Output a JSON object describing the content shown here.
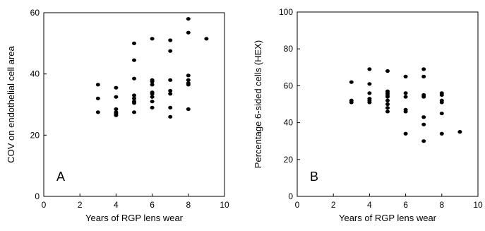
{
  "chart_data": [
    {
      "type": "scatter",
      "panel_label": "A",
      "xlabel": "Years of RGP lens wear",
      "ylabel": "COV on endothelial cell area",
      "xlim": [
        0,
        10
      ],
      "ylim": [
        0,
        60
      ],
      "xticks": [
        0,
        2,
        4,
        6,
        8,
        10
      ],
      "yticks": [
        0,
        20,
        40,
        60
      ],
      "grid": false,
      "points": [
        [
          3,
          36.5
        ],
        [
          3,
          32
        ],
        [
          3,
          27.5
        ],
        [
          4,
          35.5
        ],
        [
          4,
          32.5
        ],
        [
          4,
          28.5
        ],
        [
          4,
          27.5
        ],
        [
          4,
          27
        ],
        [
          4,
          26.5
        ],
        [
          5,
          50
        ],
        [
          5,
          44.5
        ],
        [
          5,
          38.5
        ],
        [
          5,
          33
        ],
        [
          5,
          32
        ],
        [
          5,
          31
        ],
        [
          5,
          30.5
        ],
        [
          5,
          27.5
        ],
        [
          6,
          51.5
        ],
        [
          6,
          38
        ],
        [
          6,
          37.5
        ],
        [
          6,
          36.5
        ],
        [
          6,
          34
        ],
        [
          6,
          33.5
        ],
        [
          6,
          32.5
        ],
        [
          6,
          31
        ],
        [
          6,
          29
        ],
        [
          7,
          51
        ],
        [
          7,
          47.5
        ],
        [
          7,
          38
        ],
        [
          7,
          34.5
        ],
        [
          7,
          33.5
        ],
        [
          7,
          29
        ],
        [
          7,
          26
        ],
        [
          8,
          58
        ],
        [
          8,
          53.5
        ],
        [
          8,
          39.5
        ],
        [
          8,
          38
        ],
        [
          8,
          37
        ],
        [
          8,
          36.5
        ],
        [
          8,
          28.5
        ],
        [
          9,
          51.5
        ]
      ]
    },
    {
      "type": "scatter",
      "panel_label": "B",
      "xlabel": "Years of RGP lens wear",
      "ylabel": "Percentage 6-sided cells (HEX)",
      "xlim": [
        0,
        10
      ],
      "ylim": [
        0,
        100
      ],
      "xticks": [
        0,
        2,
        4,
        6,
        8,
        10
      ],
      "yticks": [
        0,
        20,
        40,
        60,
        80,
        100
      ],
      "grid": false,
      "points": [
        [
          3,
          62
        ],
        [
          3,
          52
        ],
        [
          3,
          51
        ],
        [
          4,
          69
        ],
        [
          4,
          61
        ],
        [
          4,
          56
        ],
        [
          4,
          53
        ],
        [
          4,
          52
        ],
        [
          4,
          51
        ],
        [
          5,
          68
        ],
        [
          5,
          57
        ],
        [
          5,
          56
        ],
        [
          5,
          55
        ],
        [
          5,
          54
        ],
        [
          5,
          52
        ],
        [
          5,
          50
        ],
        [
          5,
          48
        ],
        [
          5,
          46
        ],
        [
          6,
          65
        ],
        [
          6,
          56
        ],
        [
          6,
          54
        ],
        [
          6,
          47
        ],
        [
          6,
          46
        ],
        [
          6,
          34
        ],
        [
          7,
          69
        ],
        [
          7,
          65
        ],
        [
          7,
          55
        ],
        [
          7,
          54
        ],
        [
          7,
          43
        ],
        [
          7,
          39
        ],
        [
          7,
          30
        ],
        [
          8,
          56
        ],
        [
          8,
          55
        ],
        [
          8,
          52
        ],
        [
          8,
          51
        ],
        [
          8,
          45
        ],
        [
          8,
          34
        ],
        [
          9,
          35
        ]
      ]
    }
  ]
}
